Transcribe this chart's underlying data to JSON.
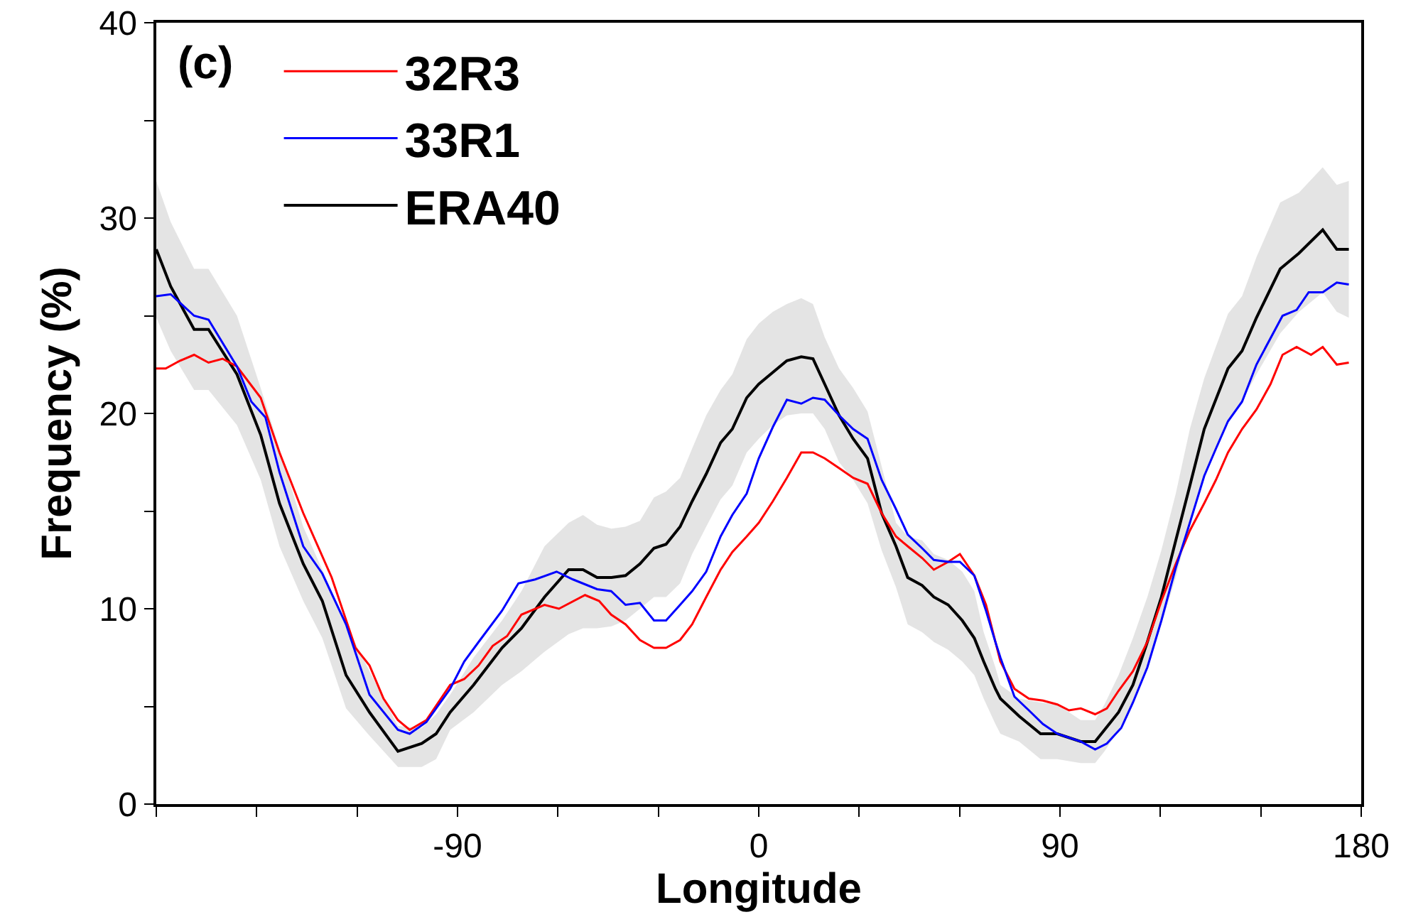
{
  "chart_data": {
    "type": "line",
    "xlabel": "Longitude",
    "ylabel": "Frequency (%)",
    "annotations": [
      "(c)"
    ],
    "xlim": [
      -180,
      180
    ],
    "xticks": [
      {
        "value": -180,
        "label": null
      },
      {
        "value": -150,
        "label": null
      },
      {
        "value": -120,
        "label": null
      },
      -90,
      {
        "value": -60,
        "label": null
      },
      {
        "value": -30,
        "label": null
      },
      0,
      {
        "value": 30,
        "label": null
      },
      {
        "value": 60,
        "label": null
      },
      90,
      {
        "value": 120,
        "label": null
      },
      {
        "value": 150,
        "label": null
      },
      180
    ],
    "ylim": [
      0,
      40
    ],
    "yticks": [
      0,
      {
        "value": 5,
        "label": null
      },
      10,
      {
        "value": 15,
        "label": null
      },
      20,
      {
        "value": 25,
        "label": null
      },
      30,
      {
        "value": 35,
        "label": null
      },
      40
    ],
    "grid": false,
    "legend": "top left",
    "marker": "none",
    "line_style": "solid",
    "series": [
      {
        "name": "32R3",
        "color": "#ff0000",
        "x": [
          -180,
          -177.2,
          -172.9,
          -168.7,
          -164.4,
          -160.2,
          -155.9,
          -148.8,
          -143.2,
          -136.1,
          -127.6,
          -120.5,
          -116.3,
          -112.1,
          -107.8,
          -104.3,
          -99.3,
          -92.2,
          -88,
          -83.7,
          -79.5,
          -75.2,
          -70.9,
          -64,
          -59.7,
          -51.9,
          -47.7,
          -44.1,
          -39.8,
          -35.5,
          -31.3,
          -27.7,
          -23.5,
          -19.9,
          -15.7,
          -11.4,
          -7.9,
          -3.6,
          0,
          4.2,
          8.4,
          12.7,
          16.2,
          19.7,
          24,
          28.2,
          32.5,
          36.7,
          41,
          44.5,
          48.8,
          52.3,
          56.6,
          60.1,
          64.4,
          67.9,
          72.2,
          76.4,
          80.7,
          84.9,
          89.2,
          92.7,
          96.2,
          100.5,
          104,
          107.5,
          111.8,
          116.1,
          120.3,
          124.6,
          128.8,
          133.1,
          136.6,
          140.2,
          144.4,
          148.7,
          152.9,
          156.5,
          160.7,
          165,
          168.5,
          172.7,
          176.3
        ],
        "values": [
          22.3,
          22.3,
          22.7,
          23.0,
          22.6,
          22.8,
          22.4,
          20.8,
          18.0,
          14.9,
          11.6,
          8.0,
          7.1,
          5.4,
          4.3,
          3.8,
          4.3,
          6.1,
          6.4,
          7.1,
          8.1,
          8.6,
          9.7,
          10.2,
          10.0,
          10.7,
          10.4,
          9.7,
          9.2,
          8.4,
          8.0,
          8.0,
          8.4,
          9.2,
          10.6,
          12.0,
          12.9,
          13.7,
          14.4,
          15.5,
          16.7,
          18.0,
          18.0,
          17.7,
          17.2,
          16.7,
          16.4,
          14.9,
          13.7,
          13.2,
          12.6,
          12.0,
          12.4,
          12.8,
          11.7,
          10.2,
          7.3,
          5.9,
          5.4,
          5.3,
          5.1,
          4.8,
          4.9,
          4.6,
          4.9,
          5.8,
          6.8,
          8.3,
          10.4,
          12.3,
          14.0,
          15.4,
          16.6,
          18.0,
          19.2,
          20.2,
          21.5,
          23.0,
          23.4,
          23.0,
          23.4,
          22.5,
          22.6
        ]
      },
      {
        "name": "33R1",
        "color": "#0000ff",
        "x": [
          -180,
          -175.7,
          -168.7,
          -164.4,
          -155.9,
          -151.6,
          -147.4,
          -143.2,
          -136.1,
          -130.4,
          -123.3,
          -116.3,
          -107.8,
          -104.3,
          -99.3,
          -92.2,
          -88,
          -83.7,
          -76.7,
          -71.8,
          -66.8,
          -60.4,
          -55.5,
          -48.3,
          -44.1,
          -39.8,
          -35.5,
          -31.3,
          -27.7,
          -23.5,
          -19.9,
          -15.7,
          -11.4,
          -7.9,
          -3.6,
          0,
          4.2,
          8.4,
          12.7,
          16.2,
          19.7,
          24,
          28.2,
          32.5,
          36.7,
          41,
          44.5,
          48.8,
          52.3,
          56.6,
          60.1,
          64.4,
          67.9,
          70.7,
          72.2,
          76.4,
          80.7,
          84.9,
          89.2,
          96.2,
          100.5,
          104,
          108.3,
          111.8,
          116.1,
          120.3,
          124.6,
          128.8,
          133.1,
          136.6,
          140.2,
          144.4,
          148.7,
          156.5,
          160.7,
          164.3,
          168.5,
          172.7,
          176.3
        ],
        "values": [
          26.0,
          26.1,
          25.0,
          24.8,
          22.4,
          20.6,
          19.8,
          17.0,
          13.2,
          11.8,
          9.2,
          5.6,
          3.8,
          3.6,
          4.2,
          5.9,
          7.3,
          8.3,
          9.9,
          11.3,
          11.5,
          11.9,
          11.5,
          11.0,
          10.9,
          10.2,
          10.3,
          9.4,
          9.4,
          10.2,
          10.9,
          11.9,
          13.7,
          14.8,
          15.9,
          17.7,
          19.3,
          20.7,
          20.5,
          20.8,
          20.7,
          19.9,
          19.2,
          18.7,
          16.6,
          15.1,
          13.8,
          13.1,
          12.5,
          12.4,
          12.4,
          11.7,
          9.9,
          8.3,
          7.5,
          5.5,
          4.8,
          4.1,
          3.6,
          3.2,
          2.8,
          3.1,
          3.9,
          5.2,
          7.0,
          9.4,
          12.1,
          14.4,
          16.8,
          18.2,
          19.6,
          20.6,
          22.5,
          25.0,
          25.3,
          26.2,
          26.2,
          26.7,
          26.6
        ]
      },
      {
        "name": "ERA40",
        "color": "#000000",
        "x": [
          -180,
          -175.7,
          -168.7,
          -164.4,
          -155.9,
          -148.8,
          -143.2,
          -136.1,
          -130.4,
          -123.3,
          -116.3,
          -107.8,
          -100.7,
          -96.4,
          -92.2,
          -85.2,
          -76.7,
          -70.9,
          -64,
          -56.8,
          -52.5,
          -48.3,
          -44,
          -39.8,
          -35.5,
          -31.3,
          -27.7,
          -23.5,
          -19.9,
          -15.7,
          -11.4,
          -7.9,
          -3.6,
          0,
          4.2,
          8.4,
          12.7,
          16.2,
          19.7,
          24,
          28.2,
          32.5,
          36.7,
          41,
          44.5,
          48.8,
          52.3,
          56.6,
          60.8,
          64.4,
          67.2,
          70.7,
          72.2,
          77.8,
          84.2,
          89.2,
          96.2,
          100.5,
          103.3,
          107.5,
          111.8,
          116.1,
          120.3,
          124.6,
          128.8,
          133.1,
          140.2,
          144.4,
          148.7,
          155.8,
          161.4,
          168.5,
          172.7,
          176.3
        ],
        "values": [
          28.4,
          26.5,
          24.3,
          24.3,
          22.0,
          18.9,
          15.4,
          12.3,
          10.4,
          6.6,
          4.7,
          2.7,
          3.1,
          3.6,
          4.7,
          6.1,
          8.0,
          9.0,
          10.6,
          12.0,
          12.0,
          11.6,
          11.6,
          11.7,
          12.3,
          13.1,
          13.3,
          14.2,
          15.5,
          16.9,
          18.5,
          19.2,
          20.8,
          21.5,
          22.1,
          22.7,
          22.9,
          22.8,
          21.5,
          19.9,
          18.7,
          17.7,
          14.9,
          13.2,
          11.6,
          11.2,
          10.6,
          10.2,
          9.4,
          8.5,
          7.3,
          5.9,
          5.4,
          4.5,
          3.6,
          3.6,
          3.2,
          3.2,
          3.8,
          4.7,
          6.1,
          8.3,
          10.6,
          13.5,
          16.3,
          19.2,
          22.3,
          23.2,
          24.9,
          27.4,
          28.2,
          29.4,
          28.4,
          28.4
        ],
        "upper": [
          31.9,
          29.8,
          27.4,
          27.4,
          25.0,
          21.3,
          18.2,
          14.2,
          12.0,
          9.2,
          6.8,
          4.0,
          3.9,
          4.6,
          5.6,
          7.5,
          9.4,
          10.9,
          13.2,
          14.4,
          14.8,
          14.3,
          14.1,
          14.2,
          14.5,
          15.7,
          16.0,
          16.7,
          18.2,
          19.9,
          21.2,
          22.0,
          23.8,
          24.6,
          25.2,
          25.6,
          25.9,
          25.6,
          23.9,
          22.3,
          21.3,
          20.1,
          17.3,
          14.4,
          13.7,
          13.5,
          12.8,
          12.5,
          11.9,
          10.9,
          8.8,
          7.0,
          6.1,
          5.4,
          5.2,
          5.1,
          4.3,
          4.3,
          5.1,
          6.6,
          8.5,
          10.6,
          13.0,
          15.9,
          19.2,
          21.8,
          25.1,
          26.0,
          28.0,
          30.8,
          31.3,
          32.6,
          31.7,
          31.9
        ],
        "lower": [
          24.9,
          23.2,
          21.2,
          21.2,
          19.4,
          16.6,
          13.2,
          10.4,
          8.5,
          4.9,
          3.5,
          1.9,
          1.9,
          2.3,
          3.8,
          4.7,
          6.1,
          6.8,
          7.8,
          8.7,
          9.0,
          9.0,
          9.1,
          9.4,
          10.0,
          10.6,
          10.6,
          11.3,
          12.8,
          14.2,
          15.6,
          16.3,
          18.0,
          18.7,
          19.4,
          19.9,
          20.0,
          20.0,
          19.2,
          17.5,
          16.6,
          15.4,
          13.0,
          11.1,
          9.2,
          8.8,
          8.3,
          7.9,
          7.3,
          6.6,
          5.4,
          4.1,
          3.6,
          3.2,
          2.3,
          2.3,
          2.1,
          2.1,
          2.7,
          3.8,
          5.2,
          7.1,
          9.2,
          11.6,
          14.4,
          16.8,
          19.6,
          20.6,
          22.0,
          24.1,
          25.2,
          26.2,
          25.2,
          24.9
        ]
      }
    ]
  }
}
